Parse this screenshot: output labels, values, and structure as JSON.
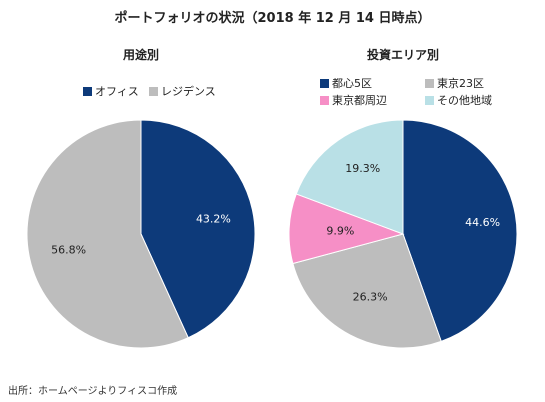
{
  "title": "ポートフォリオの状況（2018 年 12 月 14 日時点）",
  "source_note": "出所：ホームページよりフィスコ作成",
  "colors": {
    "navy": "#0d3a7a",
    "gray": "#bdbdbd",
    "pink": "#f68fc6",
    "lightblue": "#b9e0e6"
  },
  "chart_data": [
    {
      "type": "pie",
      "title": "用途別",
      "legend_position": "top",
      "categories": [
        "オフィス",
        "レジデンス"
      ],
      "values": [
        43.2,
        56.8
      ],
      "labels": [
        "43.2%",
        "56.8%"
      ],
      "colors": [
        "#0d3a7a",
        "#bdbdbd"
      ]
    },
    {
      "type": "pie",
      "title": "投資エリア別",
      "legend_position": "top",
      "categories": [
        "都心5区",
        "東京23区",
        "東京都周辺",
        "その他地域"
      ],
      "values": [
        44.6,
        26.3,
        9.9,
        19.3
      ],
      "labels": [
        "44.6%",
        "26.3%",
        "9.9%",
        "19.3%"
      ],
      "colors": [
        "#0d3a7a",
        "#bdbdbd",
        "#f68fc6",
        "#b9e0e6"
      ]
    }
  ]
}
